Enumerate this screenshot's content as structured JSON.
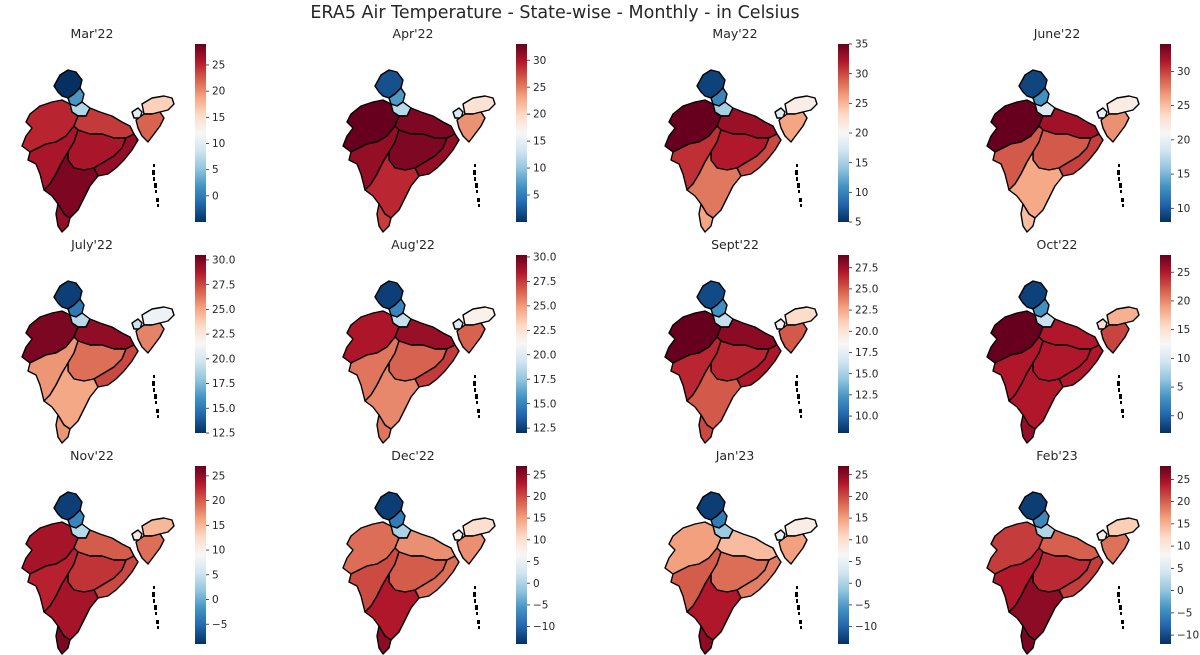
{
  "figure": {
    "title": "ERA5 Air Temperature - State-wise - Monthly - in Celsius",
    "colormap": [
      "#053061",
      "#2166ac",
      "#4393c3",
      "#92c5de",
      "#d1e5f0",
      "#f7f7f7",
      "#fddbc7",
      "#f4a582",
      "#d6604d",
      "#b2182b",
      "#67001f"
    ],
    "border_color": "#000000"
  },
  "chart_data": [
    {
      "type": "heatmap",
      "title": "Mar'22",
      "vmin": -5,
      "vmax": 29,
      "colorbar_ticks": [
        0,
        5,
        10,
        15,
        20,
        25
      ],
      "regions": {
        "jk": -5,
        "ladakh": 2,
        "hp": 7,
        "north_plain": 24,
        "northwest": 25,
        "west": 26,
        "central": 26,
        "east": 27,
        "south": 28,
        "tip": 27,
        "sikkim": 10,
        "northeast_upper": 16,
        "northeast_lower": 22
      }
    },
    {
      "type": "heatmap",
      "title": "Apr'22",
      "vmin": 0,
      "vmax": 33,
      "colorbar_ticks": [
        5,
        10,
        15,
        20,
        25,
        30
      ],
      "regions": {
        "jk": 2,
        "ladakh": 7,
        "hp": 12,
        "north_plain": 32,
        "northwest": 33,
        "west": 31,
        "central": 32,
        "east": 31,
        "south": 29,
        "tip": 28,
        "sikkim": 14,
        "northeast_upper": 19,
        "northeast_lower": 24
      }
    },
    {
      "type": "heatmap",
      "title": "May'22",
      "vmin": 5,
      "vmax": 35,
      "colorbar_ticks": [
        5,
        10,
        15,
        20,
        25,
        30,
        35
      ],
      "regions": {
        "jk": 6,
        "ladakh": 10,
        "hp": 15,
        "north_plain": 33,
        "northwest": 35,
        "west": 31,
        "central": 32,
        "east": 30,
        "south": 28,
        "tip": 26,
        "sikkim": 18,
        "northeast_upper": 21,
        "northeast_lower": 26
      }
    },
    {
      "type": "heatmap",
      "title": "June'22",
      "vmin": 8,
      "vmax": 34,
      "colorbar_ticks": [
        10,
        15,
        20,
        25,
        30
      ],
      "regions": {
        "jk": 9,
        "ladakh": 13,
        "hp": 19,
        "north_plain": 32,
        "northwest": 34,
        "west": 29,
        "central": 29,
        "east": 30,
        "south": 26,
        "tip": 25,
        "sikkim": 20,
        "northeast_upper": 22,
        "northeast_lower": 27
      }
    },
    {
      "type": "heatmap",
      "title": "July'22",
      "vmin": 12.5,
      "vmax": 30.5,
      "colorbar_ticks": [
        12.5,
        15.0,
        17.5,
        20.0,
        22.5,
        25.0,
        27.5,
        30.0
      ],
      "regions": {
        "jk": 13,
        "ladakh": 15,
        "hp": 19,
        "north_plain": 29.5,
        "northwest": 30,
        "west": 25.5,
        "central": 26.5,
        "east": 27.5,
        "south": 25,
        "tip": 25.5,
        "sikkim": 19.5,
        "northeast_upper": 21,
        "northeast_lower": 26
      }
    },
    {
      "type": "heatmap",
      "title": "Aug'22",
      "vmin": 12,
      "vmax": 30.2,
      "colorbar_ticks": [
        12.5,
        15.0,
        17.5,
        20.0,
        22.5,
        25.0,
        27.5,
        30.0
      ],
      "regions": {
        "jk": 12.5,
        "ladakh": 15,
        "hp": 19,
        "north_plain": 29,
        "northwest": 28.5,
        "west": 26,
        "central": 26.5,
        "east": 27.5,
        "south": 25.5,
        "tip": 26,
        "sikkim": 20,
        "northeast_upper": 21.5,
        "northeast_lower": 26.5
      }
    },
    {
      "type": "heatmap",
      "title": "Sept'22",
      "vmin": 8,
      "vmax": 29,
      "colorbar_ticks": [
        10.0,
        12.5,
        15.0,
        17.5,
        20.0,
        22.5,
        25.0,
        27.5
      ],
      "regions": {
        "jk": 9,
        "ladakh": 12,
        "hp": 16,
        "north_plain": 28,
        "northwest": 29,
        "west": 26.5,
        "central": 26.5,
        "east": 27,
        "south": 25,
        "tip": 25.5,
        "sikkim": 19,
        "northeast_upper": 20.5,
        "northeast_lower": 25
      }
    },
    {
      "type": "heatmap",
      "title": "Oct'22",
      "vmin": -3,
      "vmax": 28,
      "colorbar_ticks": [
        0,
        5,
        10,
        15,
        20,
        25
      ],
      "regions": {
        "jk": -2,
        "ladakh": 3,
        "hp": 9,
        "north_plain": 25,
        "northwest": 28,
        "west": 25,
        "central": 25,
        "east": 25,
        "south": 25,
        "tip": 26,
        "sikkim": 15,
        "northeast_upper": 18,
        "northeast_lower": 23
      }
    },
    {
      "type": "heatmap",
      "title": "Nov'22",
      "vmin": -9,
      "vmax": 27,
      "colorbar_ticks": [
        -5,
        0,
        5,
        10,
        15,
        20,
        25
      ],
      "regions": {
        "jk": -8,
        "ladakh": -3,
        "hp": 4,
        "north_plain": 20,
        "northwest": 24,
        "west": 23,
        "central": 22,
        "east": 21,
        "south": 24,
        "tip": 26,
        "sikkim": 11,
        "northeast_upper": 15,
        "northeast_lower": 19
      }
    },
    {
      "type": "heatmap",
      "title": "Dec'22",
      "vmin": -14,
      "vmax": 27,
      "colorbar_ticks": [
        -10,
        -5,
        0,
        5,
        10,
        15,
        20,
        25
      ],
      "regions": {
        "jk": -13,
        "ladakh": -8,
        "hp": 0,
        "north_plain": 16,
        "northwest": 18,
        "west": 20,
        "central": 19,
        "east": 18,
        "south": 23,
        "tip": 25,
        "sikkim": 7,
        "northeast_upper": 10,
        "northeast_lower": 16
      }
    },
    {
      "type": "heatmap",
      "title": "Jan'23",
      "vmin": -14,
      "vmax": 27,
      "colorbar_ticks": [
        -10,
        -5,
        0,
        5,
        10,
        15,
        20,
        25
      ],
      "regions": {
        "jk": -13,
        "ladakh": -8,
        "hp": -1,
        "north_plain": 13,
        "northwest": 15,
        "west": 19,
        "central": 18,
        "east": 17,
        "south": 23,
        "tip": 25,
        "sikkim": 5,
        "northeast_upper": 8,
        "northeast_lower": 15
      }
    },
    {
      "type": "heatmap",
      "title": "Feb'23",
      "vmin": -12,
      "vmax": 28,
      "colorbar_ticks": [
        -10,
        -5,
        0,
        5,
        10,
        15,
        20,
        25
      ],
      "regions": {
        "jk": -11,
        "ladakh": -5,
        "hp": 2,
        "north_plain": 20,
        "northwest": 22,
        "west": 24,
        "central": 23,
        "east": 22,
        "south": 26,
        "tip": 27,
        "sikkim": 9,
        "northeast_upper": 13,
        "northeast_lower": 19
      }
    }
  ]
}
